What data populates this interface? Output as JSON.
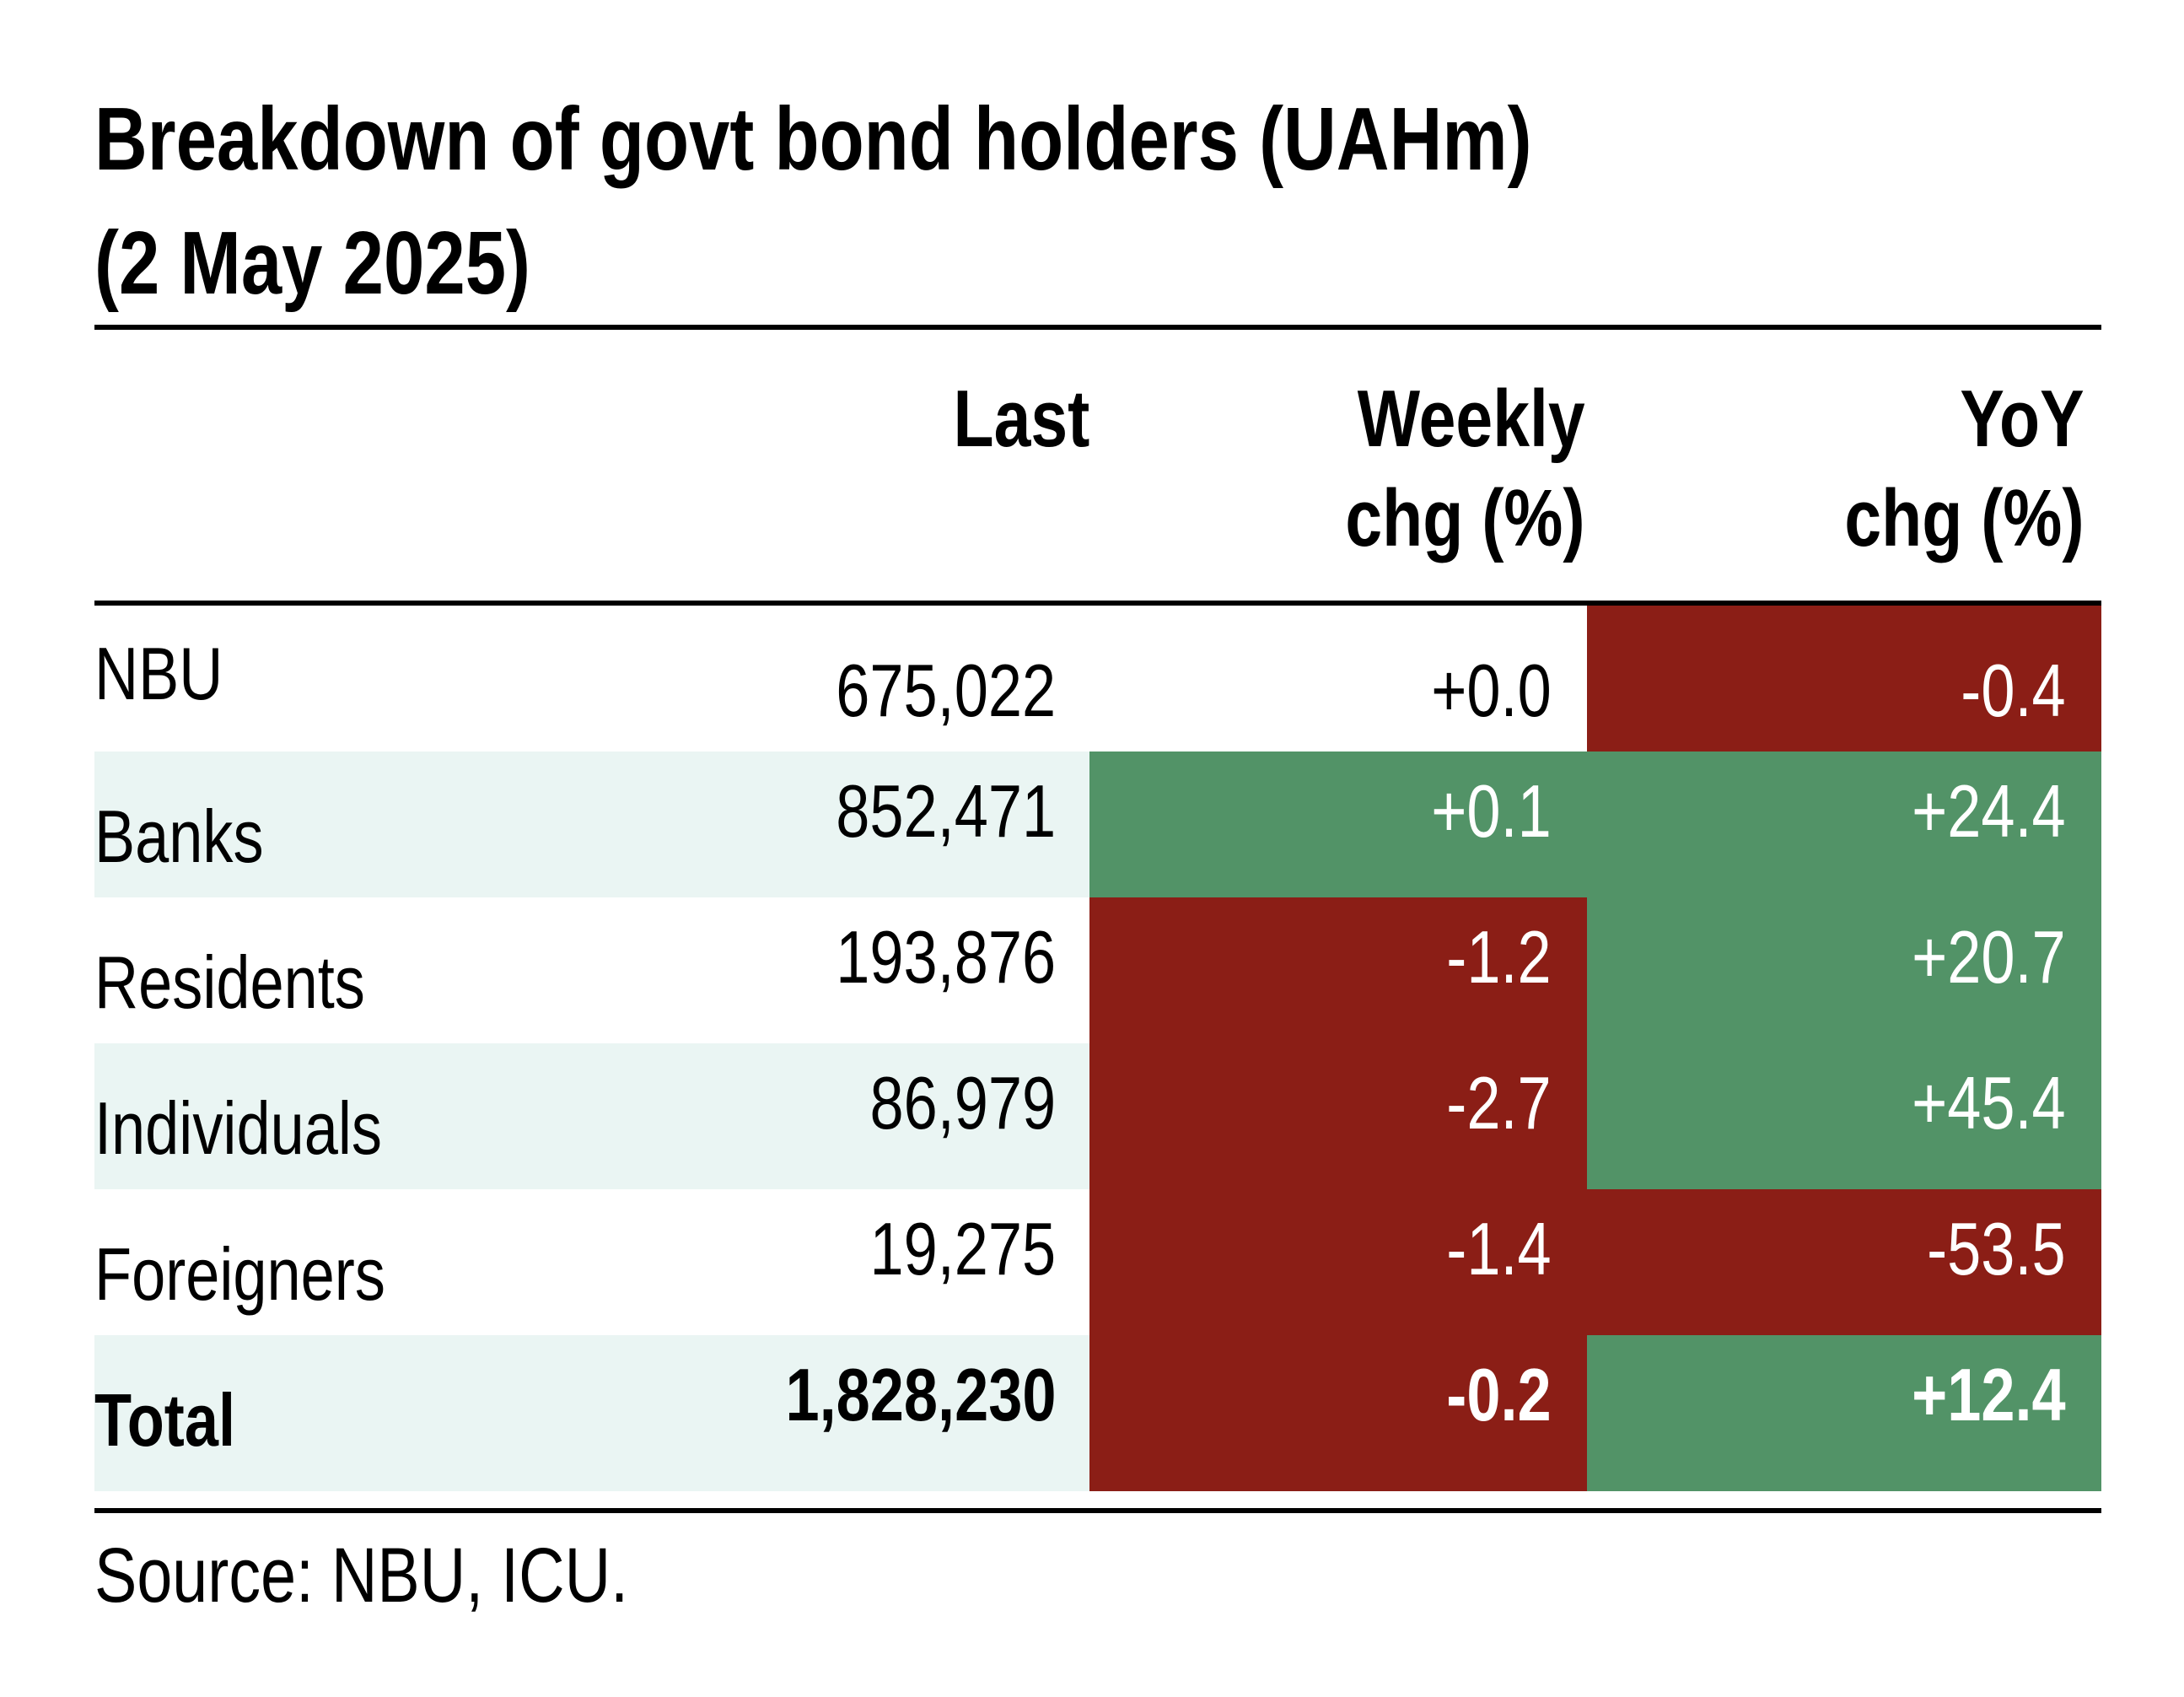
{
  "title": {
    "line1": "Breakdown of govt bond holders (UAHm)",
    "line2": "(2 May 2025)"
  },
  "headers": {
    "last": "Last",
    "weekly_line1": "Weekly",
    "weekly_line2": "chg (%)",
    "yoy_line1": "YoY",
    "yoy_line2": "chg (%)"
  },
  "rows": [
    {
      "label": "NBU",
      "last": "675,022",
      "weekly": "+0.0",
      "yoy": "-0.4"
    },
    {
      "label": "Banks",
      "last": "852,471",
      "weekly": "+0.1",
      "yoy": "+24.4"
    },
    {
      "label": "Residents",
      "last": "193,876",
      "weekly": "-1.2",
      "yoy": "+20.7"
    },
    {
      "label": "Individuals",
      "last": "86,979",
      "weekly": "-2.7",
      "yoy": "+45.4"
    },
    {
      "label": "Foreigners",
      "last": "19,275",
      "weekly": "-1.4",
      "yoy": "-53.5"
    },
    {
      "label": "Total",
      "last": "1,828,230",
      "weekly": "-0.2",
      "yoy": "+12.4"
    }
  ],
  "colors": {
    "negative": "#8b1e16",
    "positive": "#529367",
    "shade": "#eaf5f3"
  },
  "source": "Source: NBU, ICU."
}
